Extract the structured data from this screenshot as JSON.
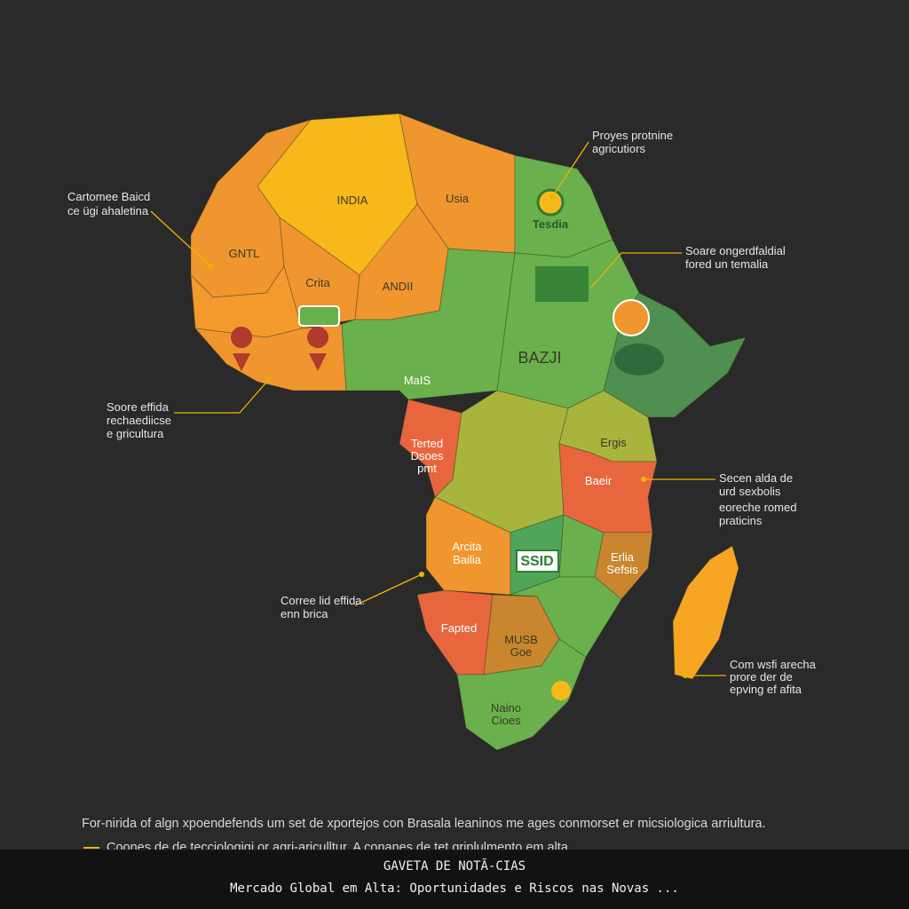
{
  "regions": [
    {
      "label": "INDIA"
    },
    {
      "label": "Usia"
    },
    {
      "label": "GNTL"
    },
    {
      "label": "Crita"
    },
    {
      "label": "ANDII"
    },
    {
      "label": "Tesdia"
    },
    {
      "label": "BAZJI"
    },
    {
      "label": "MaIS"
    },
    {
      "lines": [
        "Terted",
        "Dsoes",
        "pmt"
      ]
    },
    {
      "label": "Ergis"
    },
    {
      "label": "Baeir"
    },
    {
      "lines": [
        "Arcita",
        "Bailia"
      ]
    },
    {
      "label": "SSID"
    },
    {
      "lines": [
        "Erlia",
        "Sefsis"
      ]
    },
    {
      "label": "Fapted"
    },
    {
      "lines": [
        "MUSB",
        "Goe"
      ]
    },
    {
      "lines": [
        "Naino",
        "Cioes"
      ]
    }
  ],
  "callouts": [
    {
      "lines": [
        "Cartomee Baicd",
        "ce ügi ahaletina"
      ]
    },
    {
      "lines": [
        "Proyes protnine",
        "agricutiors"
      ]
    },
    {
      "lines": [
        "Soare ongerdfaldial",
        "fored un temalia"
      ]
    },
    {
      "lines": [
        "Soore effida",
        "rechaediicse",
        "e gricultura"
      ]
    },
    {
      "lines": [
        "Secen alda de",
        "urd sexbolis",
        "eoreche romed",
        "praticins"
      ]
    },
    {
      "lines": [
        "Corree lid effida.",
        "enn brica"
      ]
    },
    {
      "lines": [
        "Com wsfi arecha",
        "prore der de",
        "epving ef afita"
      ]
    }
  ],
  "footer": {
    "line1": "For-nirida of algn xpoendefends um set de xportejos con Brasala leaninos me ages conmorset er micsiologica arriultura.",
    "line2": "Coones de de tecciologigi or agri-ariculltur. A conanes de tet griplulmento em alta."
  },
  "news_bar": {
    "title": "GAVETA DE NOTÃ-CIAS",
    "headline": "Mercado Global em Alta: Oportunidades e Riscos nas Novas ..."
  }
}
